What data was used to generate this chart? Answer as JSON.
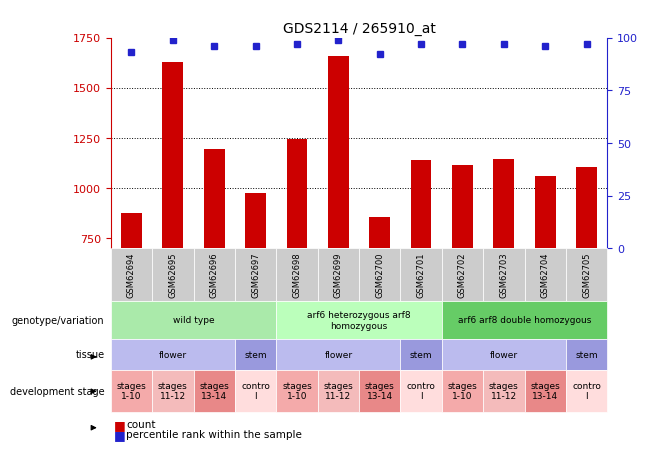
{
  "title": "GDS2114 / 265910_at",
  "samples": [
    "GSM62694",
    "GSM62695",
    "GSM62696",
    "GSM62697",
    "GSM62698",
    "GSM62699",
    "GSM62700",
    "GSM62701",
    "GSM62702",
    "GSM62703",
    "GSM62704",
    "GSM62705"
  ],
  "counts": [
    875,
    1630,
    1195,
    975,
    1245,
    1660,
    855,
    1140,
    1115,
    1145,
    1060,
    1105
  ],
  "percentiles": [
    93,
    99,
    96,
    96,
    97,
    99,
    92,
    97,
    97,
    97,
    96,
    97
  ],
  "bar_color": "#CC0000",
  "dot_color": "#2222CC",
  "ylim_left": [
    700,
    1750
  ],
  "ylim_right": [
    0,
    100
  ],
  "yticks_left": [
    750,
    1000,
    1250,
    1500,
    1750
  ],
  "yticks_right": [
    0,
    25,
    50,
    75,
    100
  ],
  "genotype_groups": [
    {
      "label": "wild type",
      "start": 0,
      "end": 3,
      "color": "#AAEAAA"
    },
    {
      "label": "arf6 heterozygous arf8\nhomozygous",
      "start": 4,
      "end": 7,
      "color": "#BBFFBB"
    },
    {
      "label": "arf6 arf8 double homozygous",
      "start": 8,
      "end": 11,
      "color": "#66CC66"
    }
  ],
  "tissue_groups": [
    {
      "label": "flower",
      "start": 0,
      "end": 2,
      "color": "#BBBBEE"
    },
    {
      "label": "stem",
      "start": 3,
      "end": 3,
      "color": "#9999DD"
    },
    {
      "label": "flower",
      "start": 4,
      "end": 6,
      "color": "#BBBBEE"
    },
    {
      "label": "stem",
      "start": 7,
      "end": 7,
      "color": "#9999DD"
    },
    {
      "label": "flower",
      "start": 8,
      "end": 10,
      "color": "#BBBBEE"
    },
    {
      "label": "stem",
      "start": 11,
      "end": 11,
      "color": "#9999DD"
    }
  ],
  "stage_groups": [
    {
      "label": "stages\n1-10",
      "start": 0,
      "end": 0,
      "color": "#F4AAAA"
    },
    {
      "label": "stages\n11-12",
      "start": 1,
      "end": 1,
      "color": "#F4BBBB"
    },
    {
      "label": "stages\n13-14",
      "start": 2,
      "end": 2,
      "color": "#E88888"
    },
    {
      "label": "contro\nl",
      "start": 3,
      "end": 3,
      "color": "#FFDDDD"
    },
    {
      "label": "stages\n1-10",
      "start": 4,
      "end": 4,
      "color": "#F4AAAA"
    },
    {
      "label": "stages\n11-12",
      "start": 5,
      "end": 5,
      "color": "#F4BBBB"
    },
    {
      "label": "stages\n13-14",
      "start": 6,
      "end": 6,
      "color": "#E88888"
    },
    {
      "label": "contro\nl",
      "start": 7,
      "end": 7,
      "color": "#FFDDDD"
    },
    {
      "label": "stages\n1-10",
      "start": 8,
      "end": 8,
      "color": "#F4AAAA"
    },
    {
      "label": "stages\n11-12",
      "start": 9,
      "end": 9,
      "color": "#F4BBBB"
    },
    {
      "label": "stages\n13-14",
      "start": 10,
      "end": 10,
      "color": "#E88888"
    },
    {
      "label": "contro\nl",
      "start": 11,
      "end": 11,
      "color": "#FFDDDD"
    }
  ],
  "row_labels": [
    "genotype/variation",
    "tissue",
    "development stage"
  ],
  "tick_label_color_left": "#CC0000",
  "tick_label_color_right": "#2222CC",
  "sample_bg_color": "#CCCCCC",
  "sample_border_color": "#AAAAAA"
}
